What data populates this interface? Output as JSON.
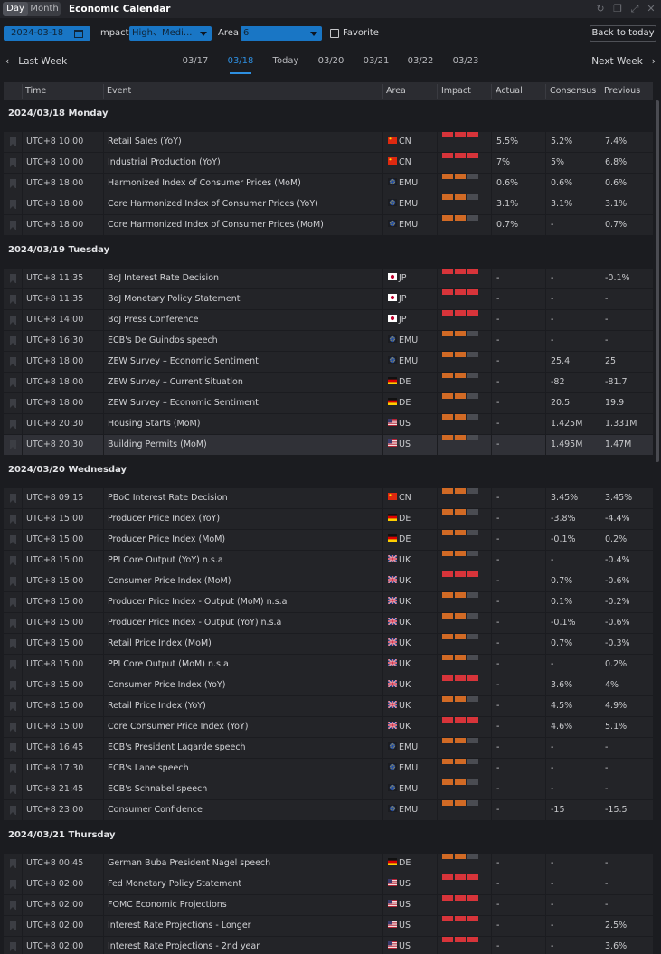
{
  "window": {
    "toggle": {
      "day": "Day",
      "month": "Month"
    },
    "title": "Economic Calendar"
  },
  "filters": {
    "date": "2024-03-18",
    "impact_label": "Impact",
    "impact_value": "High、Medi...",
    "area_label": "Area",
    "area_value": "6",
    "favorite_label": "Favorite",
    "back_to_today": "Back to today"
  },
  "week_nav": {
    "last_week": "Last Week",
    "next_week": "Next Week",
    "dates": [
      "03/17",
      "03/18",
      "Today",
      "03/20",
      "03/21",
      "03/22",
      "03/23"
    ],
    "active_index": 1
  },
  "columns": {
    "time": "Time",
    "event": "Event",
    "area": "Area",
    "impact": "Impact",
    "actual": "Actual",
    "consensus": "Consensus",
    "previous": "Previous"
  },
  "impact_colors": {
    "high": "#d7343a",
    "medium": "#d16a25",
    "off": "#4a4c52"
  },
  "days": [
    {
      "label": "2024/03/18 Monday",
      "rows": [
        {
          "time": "UTC+8 10:00",
          "event": "Retail Sales (YoY)",
          "flag": "cn-flag",
          "area": "CN",
          "impact": 3,
          "actual": "5.5%",
          "consensus": "5.2%",
          "previous": "7.4%"
        },
        {
          "time": "UTC+8 10:00",
          "event": "Industrial Production (YoY)",
          "flag": "cn-flag",
          "area": "CN",
          "impact": 3,
          "actual": "7%",
          "consensus": "5%",
          "previous": "6.8%"
        },
        {
          "time": "UTC+8 18:00",
          "event": "Harmonized Index of Consumer Prices (MoM)",
          "flag": "eu-flag",
          "area": "EMU",
          "impact": 2,
          "actual": "0.6%",
          "consensus": "0.6%",
          "previous": "0.6%"
        },
        {
          "time": "UTC+8 18:00",
          "event": "Core Harmonized Index of Consumer Prices (YoY)",
          "flag": "eu-flag",
          "area": "EMU",
          "impact": 2,
          "actual": "3.1%",
          "consensus": "3.1%",
          "previous": "3.1%"
        },
        {
          "time": "UTC+8 18:00",
          "event": "Core Harmonized Index of Consumer Prices (MoM)",
          "flag": "eu-flag",
          "area": "EMU",
          "impact": 2,
          "actual": "0.7%",
          "consensus": "-",
          "previous": "0.7%"
        }
      ]
    },
    {
      "label": "2024/03/19 Tuesday",
      "rows": [
        {
          "time": "UTC+8 11:35",
          "event": "BoJ Interest Rate Decision",
          "flag": "jp-flag",
          "area": "JP",
          "impact": 3,
          "actual": "-",
          "consensus": "-",
          "previous": "-0.1%"
        },
        {
          "time": "UTC+8 11:35",
          "event": "BoJ Monetary Policy Statement",
          "flag": "jp-flag",
          "area": "JP",
          "impact": 3,
          "actual": "-",
          "consensus": "-",
          "previous": "-"
        },
        {
          "time": "UTC+8 14:00",
          "event": "BoJ Press Conference",
          "flag": "jp-flag",
          "area": "JP",
          "impact": 3,
          "actual": "-",
          "consensus": "-",
          "previous": "-"
        },
        {
          "time": "UTC+8 16:30",
          "event": "ECB's De Guindos speech",
          "flag": "eu-flag",
          "area": "EMU",
          "impact": 2,
          "actual": "-",
          "consensus": "-",
          "previous": "-"
        },
        {
          "time": "UTC+8 18:00",
          "event": "ZEW Survey – Economic Sentiment",
          "flag": "eu-flag",
          "area": "EMU",
          "impact": 2,
          "actual": "-",
          "consensus": "25.4",
          "previous": "25"
        },
        {
          "time": "UTC+8 18:00",
          "event": "ZEW Survey – Current Situation",
          "flag": "de-flag",
          "area": "DE",
          "impact": 2,
          "actual": "-",
          "consensus": "-82",
          "previous": "-81.7"
        },
        {
          "time": "UTC+8 18:00",
          "event": "ZEW Survey – Economic Sentiment",
          "flag": "de-flag",
          "area": "DE",
          "impact": 2,
          "actual": "-",
          "consensus": "20.5",
          "previous": "19.9"
        },
        {
          "time": "UTC+8 20:30",
          "event": "Housing Starts (MoM)",
          "flag": "us-flag",
          "area": "US",
          "impact": 2,
          "actual": "-",
          "consensus": "1.425M",
          "previous": "1.331M"
        },
        {
          "time": "UTC+8 20:30",
          "event": "Building Permits (MoM)",
          "flag": "us-flag",
          "area": "US",
          "impact": 2,
          "actual": "-",
          "consensus": "1.495M",
          "previous": "1.47M",
          "highlight": true
        }
      ]
    },
    {
      "label": "2024/03/20 Wednesday",
      "rows": [
        {
          "time": "UTC+8 09:15",
          "event": "PBoC Interest Rate Decision",
          "flag": "cn-flag",
          "area": "CN",
          "impact": 2,
          "actual": "-",
          "consensus": "3.45%",
          "previous": "3.45%"
        },
        {
          "time": "UTC+8 15:00",
          "event": "Producer Price Index (YoY)",
          "flag": "de-flag",
          "area": "DE",
          "impact": 2,
          "actual": "-",
          "consensus": "-3.8%",
          "previous": "-4.4%"
        },
        {
          "time": "UTC+8 15:00",
          "event": "Producer Price Index (MoM)",
          "flag": "de-flag",
          "area": "DE",
          "impact": 2,
          "actual": "-",
          "consensus": "-0.1%",
          "previous": "0.2%"
        },
        {
          "time": "UTC+8 15:00",
          "event": "PPI Core Output (YoY) n.s.a",
          "flag": "uk-flag",
          "area": "UK",
          "impact": 2,
          "actual": "-",
          "consensus": "-",
          "previous": "-0.4%"
        },
        {
          "time": "UTC+8 15:00",
          "event": "Consumer Price Index (MoM)",
          "flag": "uk-flag",
          "area": "UK",
          "impact": 3,
          "actual": "-",
          "consensus": "0.7%",
          "previous": "-0.6%"
        },
        {
          "time": "UTC+8 15:00",
          "event": "Producer Price Index - Output (MoM) n.s.a",
          "flag": "uk-flag",
          "area": "UK",
          "impact": 2,
          "actual": "-",
          "consensus": "0.1%",
          "previous": "-0.2%"
        },
        {
          "time": "UTC+8 15:00",
          "event": "Producer Price Index - Output (YoY) n.s.a",
          "flag": "uk-flag",
          "area": "UK",
          "impact": 2,
          "actual": "-",
          "consensus": "-0.1%",
          "previous": "-0.6%"
        },
        {
          "time": "UTC+8 15:00",
          "event": "Retail Price Index (MoM)",
          "flag": "uk-flag",
          "area": "UK",
          "impact": 2,
          "actual": "-",
          "consensus": "0.7%",
          "previous": "-0.3%"
        },
        {
          "time": "UTC+8 15:00",
          "event": "PPI Core Output (MoM) n.s.a",
          "flag": "uk-flag",
          "area": "UK",
          "impact": 2,
          "actual": "-",
          "consensus": "-",
          "previous": "0.2%"
        },
        {
          "time": "UTC+8 15:00",
          "event": "Consumer Price Index (YoY)",
          "flag": "uk-flag",
          "area": "UK",
          "impact": 3,
          "actual": "-",
          "consensus": "3.6%",
          "previous": "4%"
        },
        {
          "time": "UTC+8 15:00",
          "event": "Retail Price Index (YoY)",
          "flag": "uk-flag",
          "area": "UK",
          "impact": 2,
          "actual": "-",
          "consensus": "4.5%",
          "previous": "4.9%"
        },
        {
          "time": "UTC+8 15:00",
          "event": "Core Consumer Price Index (YoY)",
          "flag": "uk-flag",
          "area": "UK",
          "impact": 3,
          "actual": "-",
          "consensus": "4.6%",
          "previous": "5.1%"
        },
        {
          "time": "UTC+8 16:45",
          "event": "ECB's President Lagarde speech",
          "flag": "eu-flag",
          "area": "EMU",
          "impact": 2,
          "actual": "-",
          "consensus": "-",
          "previous": "-"
        },
        {
          "time": "UTC+8 17:30",
          "event": "ECB's Lane speech",
          "flag": "eu-flag",
          "area": "EMU",
          "impact": 2,
          "actual": "-",
          "consensus": "-",
          "previous": "-"
        },
        {
          "time": "UTC+8 21:45",
          "event": "ECB's Schnabel speech",
          "flag": "eu-flag",
          "area": "EMU",
          "impact": 2,
          "actual": "-",
          "consensus": "-",
          "previous": "-"
        },
        {
          "time": "UTC+8 23:00",
          "event": "Consumer Confidence",
          "flag": "eu-flag",
          "area": "EMU",
          "impact": 2,
          "actual": "-",
          "consensus": "-15",
          "previous": "-15.5"
        }
      ]
    },
    {
      "label": "2024/03/21 Thursday",
      "rows": [
        {
          "time": "UTC+8 00:45",
          "event": "German Buba President Nagel speech",
          "flag": "de-flag",
          "area": "DE",
          "impact": 2,
          "actual": "-",
          "consensus": "-",
          "previous": "-"
        },
        {
          "time": "UTC+8 02:00",
          "event": "Fed Monetary Policy Statement",
          "flag": "us-flag",
          "area": "US",
          "impact": 3,
          "actual": "-",
          "consensus": "-",
          "previous": "-"
        },
        {
          "time": "UTC+8 02:00",
          "event": "FOMC Economic Projections",
          "flag": "us-flag",
          "area": "US",
          "impact": 3,
          "actual": "-",
          "consensus": "-",
          "previous": "-"
        },
        {
          "time": "UTC+8 02:00",
          "event": "Interest Rate Projections - Longer",
          "flag": "us-flag",
          "area": "US",
          "impact": 3,
          "actual": "-",
          "consensus": "-",
          "previous": "2.5%"
        },
        {
          "time": "UTC+8 02:00",
          "event": "Interest Rate Projections - 2nd year",
          "flag": "us-flag",
          "area": "US",
          "impact": 3,
          "actual": "-",
          "consensus": "-",
          "previous": "3.6%"
        }
      ]
    }
  ]
}
